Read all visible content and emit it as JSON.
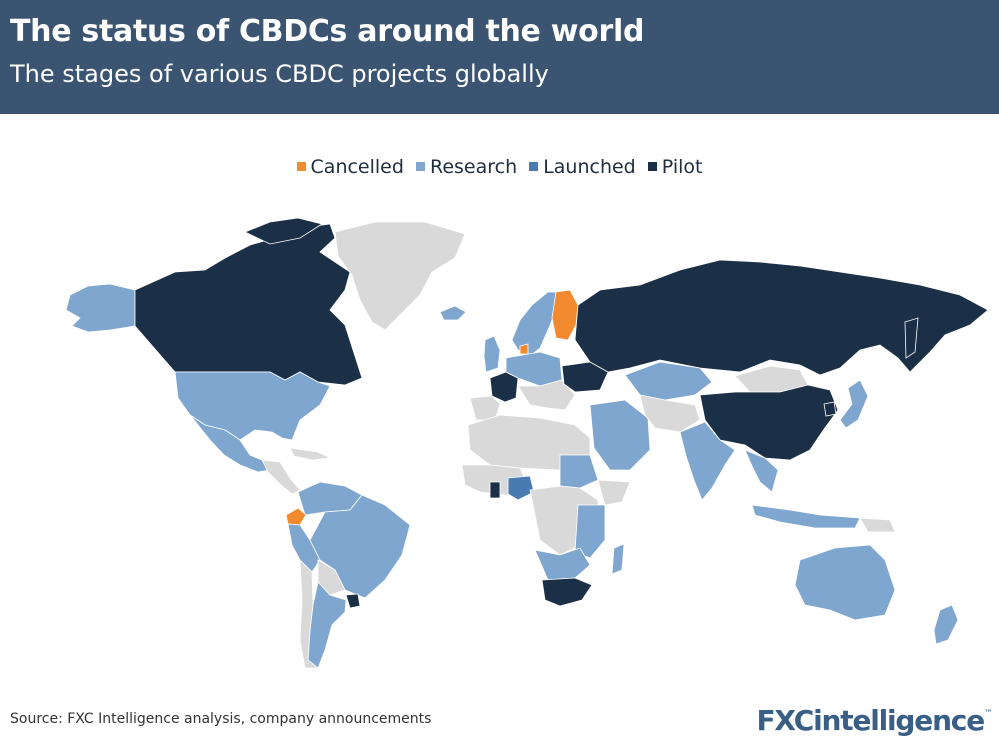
{
  "header": {
    "title": "The status of CBDCs around the world",
    "subtitle": "The stages of various CBDC projects globally"
  },
  "legend": {
    "items": [
      {
        "label": "Cancelled",
        "color": "#f28a30"
      },
      {
        "label": "Research",
        "color": "#7ea6cf"
      },
      {
        "label": "Launched",
        "color": "#4a7bb0"
      },
      {
        "label": "Pilot",
        "color": "#1b2f47"
      }
    ]
  },
  "map_colors": {
    "no_data": "#d9d9d9",
    "cancelled": "#f28a30",
    "research": "#7ea6cf",
    "launched": "#4a7bb0",
    "pilot": "#1b2f47"
  },
  "regions": {
    "cancelled": [
      "Finland",
      "Denmark",
      "Ecuador"
    ],
    "pilot": [
      "Canada",
      "Russia",
      "China",
      "France",
      "Ukraine",
      "South Korea",
      "South Africa",
      "Uruguay",
      "Ghana"
    ],
    "launched": [
      "Nigeria"
    ],
    "research": [
      "United States",
      "Alaska",
      "Mexico",
      "Brazil",
      "Peru",
      "Colombia",
      "Argentina",
      "Australia",
      "New Zealand",
      "India",
      "Kazakhstan",
      "Norway",
      "Sweden",
      "United Kingdom",
      "Sudan",
      "Saudi Arabia",
      "Japan"
    ]
  },
  "footer": {
    "source": "Source: FXC Intelligence analysis, company announcements",
    "logo": "FXCintelligence",
    "logo_mark": "™"
  }
}
